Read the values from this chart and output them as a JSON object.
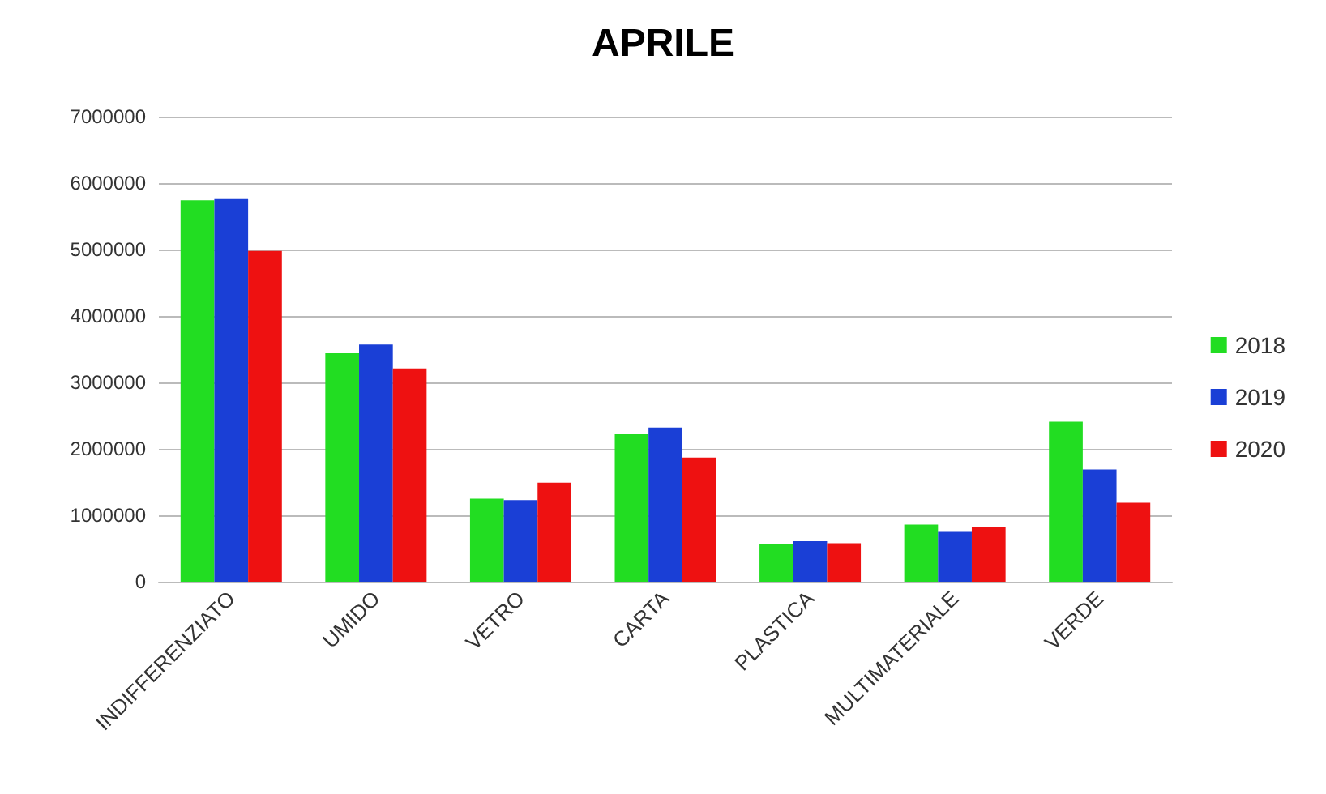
{
  "chart_data": {
    "type": "bar",
    "title": "APRILE",
    "categories": [
      "INDIFFERENZIATO",
      "UMIDO",
      "VETRO",
      "CARTA",
      "PLASTICA",
      "MULTIMATERIALE",
      "VERDE"
    ],
    "series": [
      {
        "name": "2018",
        "color": "#22dd22",
        "values": [
          5740000,
          3440000,
          1250000,
          2220000,
          560000,
          860000,
          2410000
        ]
      },
      {
        "name": "2019",
        "color": "#1a3fd6",
        "values": [
          5770000,
          3570000,
          1230000,
          2320000,
          610000,
          750000,
          1690000
        ]
      },
      {
        "name": "2020",
        "color": "#ee1111",
        "values": [
          4980000,
          3210000,
          1490000,
          1870000,
          580000,
          820000,
          1190000
        ]
      }
    ],
    "ylim": [
      0,
      7000000
    ],
    "yticks": [
      0,
      1000000,
      2000000,
      3000000,
      4000000,
      5000000,
      6000000,
      7000000
    ],
    "grid": "y",
    "legend": "right"
  }
}
